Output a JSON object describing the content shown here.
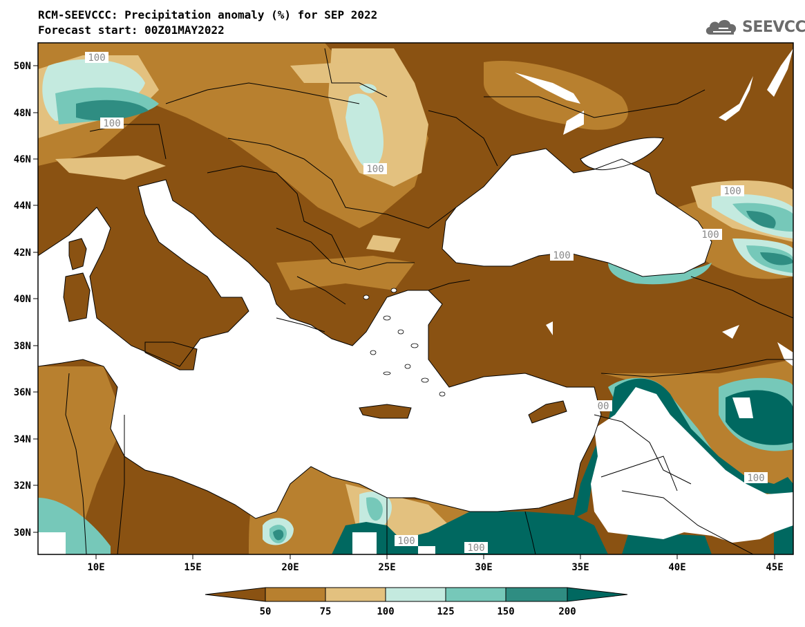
{
  "title": "RCM-SEEVCCC: Precipitation anomaly (%) for SEP 2022",
  "subtitle": "Forecast start: 00Z01MAY2022",
  "logo": {
    "text": "SEEVCCC",
    "icon": "cloud-icon"
  },
  "map": {
    "lat_ticks": [
      "50N",
      "48N",
      "46N",
      "44N",
      "42N",
      "40N",
      "38N",
      "36N",
      "34N",
      "32N",
      "30N"
    ],
    "lon_ticks": [
      "10E",
      "15E",
      "20E",
      "25E",
      "30E",
      "35E",
      "40E",
      "45E"
    ],
    "contour_labels": [
      "100",
      "100",
      "100",
      "100",
      "100",
      "100",
      "00",
      "100",
      "100",
      "100"
    ]
  },
  "colorbar": {
    "labels": [
      "50",
      "75",
      "100",
      "125",
      "150",
      "200"
    ],
    "colors": [
      "#8a5212",
      "#b8802f",
      "#e3c17f",
      "#c4eadf",
      "#76c8b9",
      "#2f8d82",
      "#006860"
    ]
  },
  "colors": {
    "land_dry": "#8a5212",
    "land_mid": "#b8802f",
    "land_light": "#e3c17f",
    "wet_light": "#c4eadf",
    "wet_mid": "#76c8b9",
    "wet_dark": "#2f8d82",
    "wet_darkest": "#006860",
    "sea": "#ffffff"
  }
}
